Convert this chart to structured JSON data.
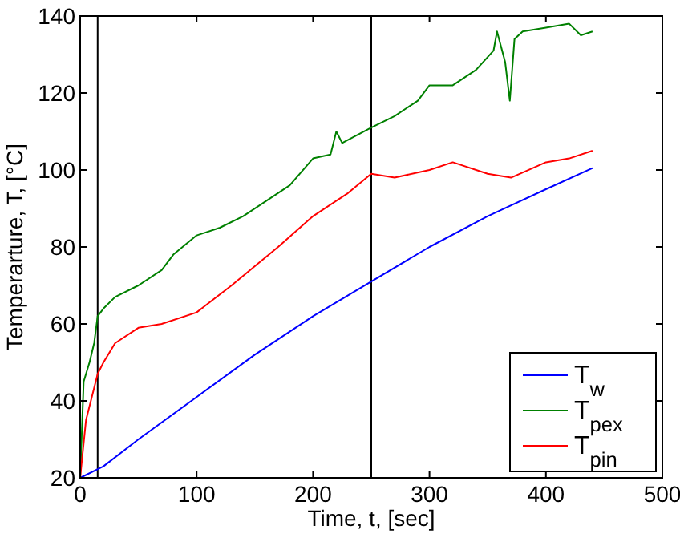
{
  "chart_data": {
    "type": "line",
    "xlabel": "Time, t, [sec]",
    "ylabel": "Temperarture, T, [°C]",
    "xlim": [
      0,
      500
    ],
    "ylim": [
      20,
      140
    ],
    "xticks": [
      0,
      100,
      200,
      300,
      400,
      500
    ],
    "yticks": [
      20,
      40,
      60,
      80,
      100,
      120,
      140
    ],
    "grid": false,
    "legend": "bottom right",
    "line_style": "solid",
    "series": [
      {
        "name": "T$_{w}$",
        "color": "#0000ff",
        "x": [
          0,
          20,
          50,
          100,
          150,
          200,
          250,
          300,
          350,
          400,
          440
        ],
        "values": [
          20,
          23,
          30,
          41,
          52,
          62,
          71,
          80,
          88,
          95,
          100.5
        ]
      },
      {
        "name": "T$_{pex}$",
        "color": "#008000",
        "x": [
          0,
          3,
          8,
          12,
          15,
          20,
          30,
          50,
          70,
          80,
          100,
          120,
          140,
          160,
          180,
          200,
          215,
          220,
          225,
          250,
          270,
          290,
          300,
          320,
          340,
          355,
          358,
          365,
          369,
          373,
          380,
          400,
          420,
          430,
          440
        ],
        "values": [
          20,
          45,
          50,
          55,
          62,
          64,
          67,
          70,
          74,
          78,
          83,
          85,
          88,
          92,
          96,
          103,
          104,
          110,
          107,
          111,
          114,
          118,
          122,
          122,
          126,
          131,
          136,
          128,
          118,
          134,
          136,
          137,
          138,
          135,
          136
        ]
      },
      {
        "name": "T$_{pin}$",
        "color": "#ff0000",
        "x": [
          0,
          5,
          15,
          20,
          30,
          50,
          70,
          100,
          130,
          150,
          170,
          200,
          230,
          250,
          270,
          300,
          320,
          350,
          370,
          400,
          420,
          440
        ],
        "values": [
          20,
          35,
          47,
          50,
          55,
          59,
          60,
          63,
          70,
          75,
          80,
          88,
          94,
          99,
          98,
          100,
          102,
          99,
          98,
          102,
          103,
          105
        ]
      }
    ],
    "ref_lines": [
      {
        "axis": "x",
        "value": 15,
        "color": "#000000"
      },
      {
        "axis": "x",
        "value": 250,
        "color": "#000000"
      }
    ]
  }
}
